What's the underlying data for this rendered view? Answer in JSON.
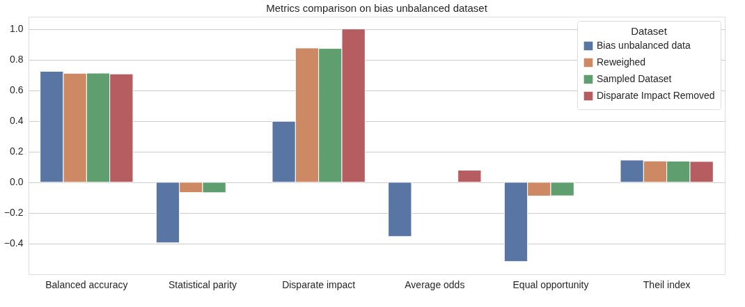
{
  "chart_data": {
    "type": "bar",
    "title": "Metrics comparison on bias unbalanced dataset",
    "categories": [
      "Balanced accuracy",
      "Statistical parity",
      "Disparate impact",
      "Average odds",
      "Equal opportunity",
      "Theil index"
    ],
    "series": [
      {
        "name": "Bias unbalanced data",
        "color": "#5975a4",
        "values": [
          0.724,
          -0.395,
          0.398,
          -0.354,
          -0.517,
          0.145
        ]
      },
      {
        "name": "Reweighed",
        "color": "#cc8963",
        "values": [
          0.711,
          -0.067,
          0.876,
          null,
          -0.09,
          0.139
        ]
      },
      {
        "name": "Sampled Dataset",
        "color": "#5f9e6e",
        "values": [
          0.712,
          -0.068,
          0.873,
          null,
          -0.088,
          0.138
        ]
      },
      {
        "name": "Disparate Impact Removed",
        "color": "#b55d60",
        "values": [
          0.707,
          null,
          1.0,
          0.079,
          null,
          0.136
        ]
      }
    ],
    "legend_title": "Dataset",
    "legend": "top right",
    "ylim": [
      -0.6,
      1.08
    ],
    "yticks": [
      {
        "value": -0.4,
        "label": "−0.4"
      },
      {
        "value": -0.2,
        "label": "−0.2"
      },
      {
        "value": 0,
        "label": "0.0"
      },
      {
        "value": 0.2,
        "label": "0.2"
      },
      {
        "value": 0.4,
        "label": "0.4"
      },
      {
        "value": 0.6,
        "label": "0.6"
      },
      {
        "value": 0.8,
        "label": "0.8"
      },
      {
        "value": 1,
        "label": "1.0"
      }
    ],
    "grid": "y"
  }
}
